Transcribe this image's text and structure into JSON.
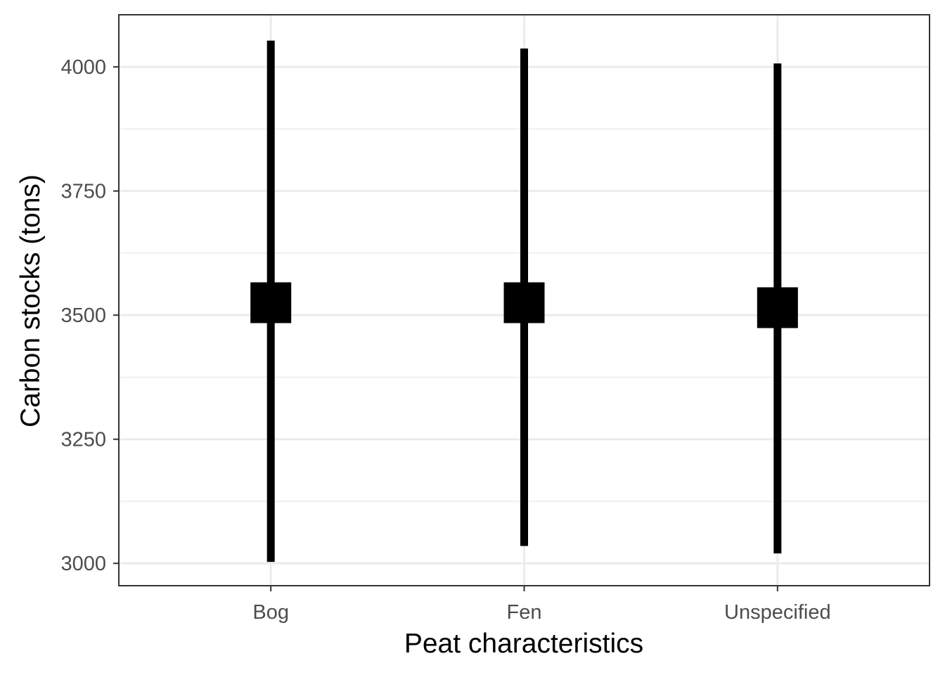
{
  "chart_data": {
    "type": "pointrange",
    "xlabel": "Peat characteristics",
    "ylabel": "Carbon stocks (tons)",
    "categories": [
      "Bog",
      "Fen",
      "Unspecified"
    ],
    "series": [
      {
        "estimate": [
          3525,
          3525,
          3515
        ],
        "lower": [
          3003,
          3035,
          3020
        ],
        "upper": [
          4053,
          4037,
          4007
        ]
      }
    ],
    "ylim": [
      2955,
      4105
    ],
    "yticks": [
      3000,
      3250,
      3500,
      3750,
      4000
    ],
    "ytick_labels": [
      "3000",
      "3250",
      "3500",
      "3750",
      "4000"
    ],
    "grid": true,
    "legend": "none",
    "colors": {
      "marks": "#000000",
      "grid": "#ebebeb",
      "panel_border": "#333333",
      "tick_text": "#4d4d4d",
      "axis_title": "#000000",
      "background": "#ffffff"
    }
  }
}
